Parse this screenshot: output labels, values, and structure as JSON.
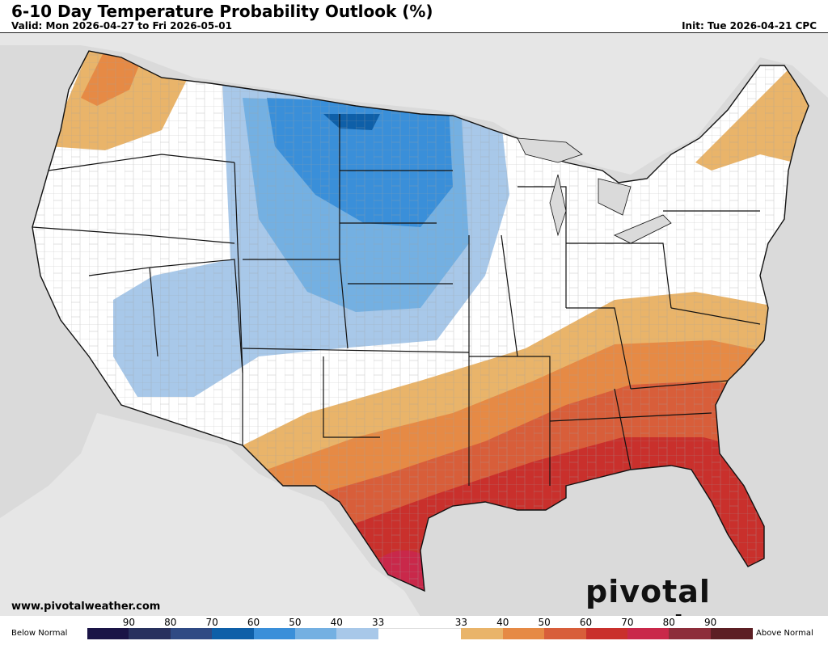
{
  "title": "6-10 Day Temperature Probability Outlook (%)",
  "valid": "Valid: Mon 2026-04-27 to Fri 2026-05-01",
  "init": "Init: Tue 2026-04-21 CPC",
  "website": "www.pivotalweather.com",
  "brand": "pivotal weather",
  "legend": {
    "below_label": "Below Normal",
    "above_label": "Above Normal",
    "ticks": [
      "90",
      "80",
      "70",
      "60",
      "50",
      "40",
      "33",
      "33",
      "40",
      "50",
      "60",
      "70",
      "80",
      "90"
    ],
    "colors": [
      "#1a1446",
      "#28315e",
      "#2f4a84",
      "#0e5fa8",
      "#3a8fd9",
      "#74b0e2",
      "#a8c8e9",
      "#ffffff",
      "#ffffff",
      "#e9b46a",
      "#e68a45",
      "#d85e3a",
      "#c9302c",
      "#c9284a",
      "#8d2d3a",
      "#5c1f24"
    ]
  },
  "colors": {
    "land": "#ffffff",
    "water": "#dadada",
    "border": "#111111",
    "county": "#9a9a9a"
  }
}
